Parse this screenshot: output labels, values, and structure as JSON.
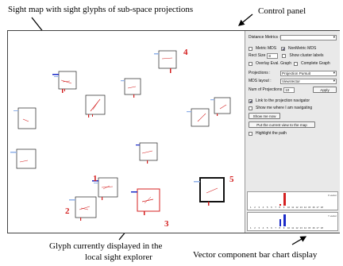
{
  "captions": {
    "sight_map": "Sight map with sight glyphs of sub-space projections",
    "control_panel": "Control panel",
    "glyph_line1": "Glyph currently displayed in the",
    "glyph_line2": "local sight explorer",
    "vector_chart": "Vector component bar chart display"
  },
  "map": {
    "numbers": [
      "1",
      "2",
      "3",
      "4",
      "5"
    ],
    "number_color": "#d42020"
  },
  "panel": {
    "distance_metrics_label": "Distance Metrics :",
    "distance_metrics_value": "",
    "metric_mds_label": "Metric MDS",
    "nonmetric_mds_label": "NonMetric MDS",
    "rect_size_label": "Rect Size",
    "rect_size_value": "8",
    "show_cluster_labels_label": "Show cluster labels",
    "overlay_eval_graph_label": "Overlay Eval. Graph",
    "complete_graph_label": "Complete Graph",
    "projections_label": "Projections :",
    "projections_value": "Projection Pursuit",
    "mds_layout_label": "MDS layout :",
    "mds_layout_value": "ViewVector",
    "num_projections_label": "Num of Projections",
    "num_projections_value": "10",
    "apply_label": "Apply",
    "link_navigator_label": "Link to the projection navigator",
    "show_where_label": "Show me where I am navigating",
    "show_me_now_label": "Show me now",
    "put_view_label": "Put the current view to the map",
    "highlight_path_label": "Highlight the path"
  },
  "bar_charts": [
    {
      "label": "X vector",
      "ticks": [
        "1",
        "2",
        "3",
        "4",
        "5",
        "6",
        "7",
        "8",
        "9",
        "10",
        "11",
        "12",
        "13",
        "14",
        "15",
        "16",
        "17",
        "18"
      ],
      "values": [
        0,
        0,
        0,
        0,
        0,
        0,
        0,
        0.15,
        1.0,
        0,
        0,
        0,
        0,
        0,
        0,
        0,
        0,
        0
      ],
      "color": "#d42020"
    },
    {
      "label": "Y vector",
      "ticks": [
        "1",
        "2",
        "3",
        "4",
        "5",
        "6",
        "7",
        "8",
        "9",
        "10",
        "11",
        "12",
        "13",
        "14",
        "15",
        "16",
        "17",
        "18"
      ],
      "values": [
        0,
        0,
        0,
        0,
        0,
        0,
        0,
        0.55,
        0.95,
        0,
        0,
        0,
        0,
        0,
        0,
        0,
        0,
        0
      ],
      "color": "#1a2ac8"
    }
  ]
}
